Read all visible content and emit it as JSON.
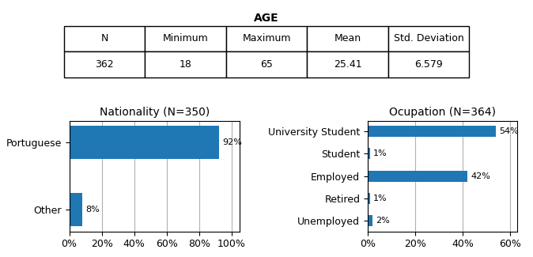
{
  "chart_data": [
    {
      "type": "table",
      "title": "AGE",
      "columns": [
        "N",
        "Minimum",
        "Maximum",
        "Mean",
        "Std. Deviation"
      ],
      "values": [
        362,
        18,
        65,
        25.41,
        6.579
      ]
    },
    {
      "type": "bar",
      "orientation": "horizontal",
      "title": "Nationality",
      "subtitle": "(N=350)",
      "categories": [
        "Other",
        "Portuguese"
      ],
      "values": [
        8,
        92
      ],
      "value_labels": [
        "8%",
        "92%"
      ],
      "data_labels": true,
      "xlim": [
        0,
        105
      ],
      "xticks": [
        {
          "value": 0,
          "label": "0%"
        },
        {
          "value": 20,
          "label": "20%"
        },
        {
          "value": 40,
          "label": "40%"
        },
        {
          "value": 60,
          "label": "60%"
        },
        {
          "value": 80,
          "label": "80%"
        },
        {
          "value": 100,
          "label": "100%"
        }
      ],
      "grid": true
    },
    {
      "type": "bar",
      "orientation": "horizontal",
      "title": "Ocupation",
      "subtitle": "(N=364)",
      "categories": [
        "Unemployed",
        "Retired",
        "Employed",
        "Student",
        "University Student"
      ],
      "values": [
        2,
        1,
        42,
        1,
        54
      ],
      "value_labels": [
        "2%",
        "1%",
        "42%",
        "1%",
        "54%"
      ],
      "data_labels": true,
      "xlim": [
        0,
        63
      ],
      "xticks": [
        {
          "value": 0,
          "label": "0%"
        },
        {
          "value": 20,
          "label": "20%"
        },
        {
          "value": 40,
          "label": "40%"
        },
        {
          "value": 60,
          "label": "60%"
        }
      ],
      "grid": true
    }
  ]
}
